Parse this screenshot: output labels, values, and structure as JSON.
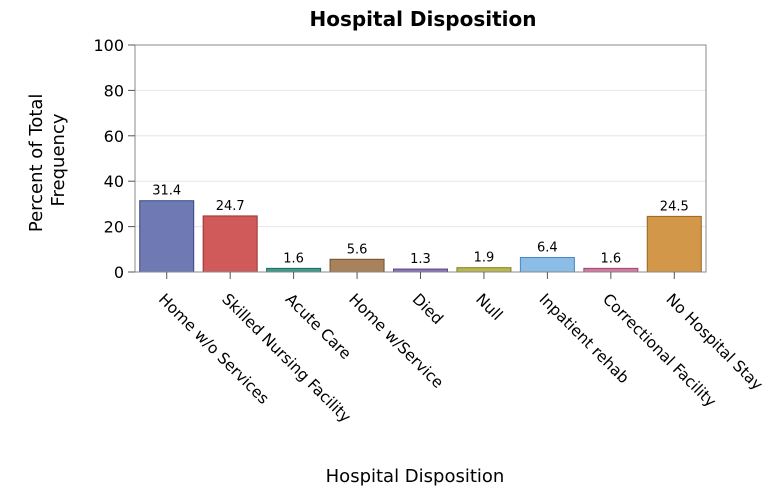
{
  "chart_data": {
    "type": "bar",
    "title": "Hospital Disposition",
    "xlabel": "Hospital Disposition",
    "ylabel_lines": [
      "Percent of Total",
      "Frequency"
    ],
    "ylim": [
      0,
      100
    ],
    "yticks": [
      0,
      20,
      40,
      60,
      80,
      100
    ],
    "grid": true,
    "categories": [
      "Home w/o Services",
      "Skilled Nursing Facility",
      "Acute Care",
      "Home w/Service",
      "Died",
      "Null",
      "Inpatient rehab",
      "Correctional Facility",
      "No Hospital Stay"
    ],
    "values": [
      31.4,
      24.7,
      1.6,
      5.6,
      1.3,
      1.9,
      6.4,
      1.6,
      24.5
    ],
    "value_labels": [
      "31.4",
      "24.7",
      "1.6",
      "5.6",
      "1.3",
      "1.9",
      "6.4",
      "1.6",
      "24.5"
    ],
    "colors": [
      "#6f7ab5",
      "#d05a5a",
      "#3f9b8c",
      "#a8825a",
      "#8b74b8",
      "#b8b84e",
      "#8cbde6",
      "#d27aa0",
      "#d3974a"
    ],
    "edge_colors": [
      "#3a4480",
      "#9c2f2f",
      "#1e6b5e",
      "#6e5233",
      "#5a4588",
      "#7e7e24",
      "#4a86bd",
      "#9e4570",
      "#9a6422"
    ]
  }
}
